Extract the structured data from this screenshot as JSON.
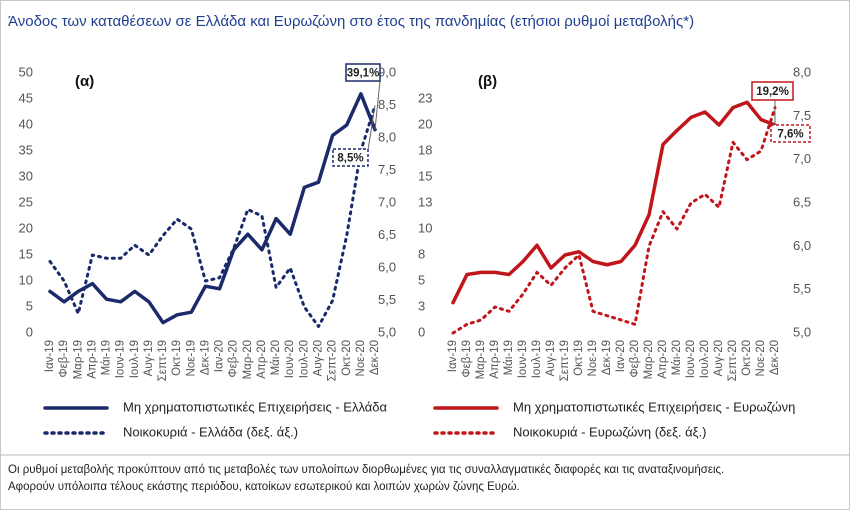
{
  "title": "Άνοδος των καταθέσεων σε Ελλάδα και Ευρωζώνη στο έτος της πανδημίας (ετήσιοι ρυθμοί μεταβολής*)",
  "footnote": [
    "Οι ρυθμοί μεταβολής προκύπτουν  από τις μεταβολές των υπολοίπων διορθωμένες για τις συναλλαγματικές διαφορές και τις αναταξινομήσεις.",
    "Αφορούν υπόλοιπα τέλους εκάστης περιόδου, κατοίκων εσωτερικού και λοιπών χωρών ζώνης Ευρώ."
  ],
  "chart_data": [
    {
      "type": "line",
      "title": "(α)",
      "categories": [
        "Ιαν-19",
        "Φεβ-19",
        "Μαρ-19",
        "Απρ-19",
        "Μάι-19",
        "Ιουν-19",
        "Ιουλ-19",
        "Αυγ-19",
        "Σεπτ-19",
        "Οκτ-19",
        "Νοε-19",
        "Δεκ-19",
        "Ιαν-20",
        "Φεβ-20",
        "Μαρ-20",
        "Απρ-20",
        "Μάι-20",
        "Ιουν-20",
        "Ιουλ-20",
        "Αυγ-20",
        "Σεπτ-20",
        "Οκτ-20",
        "Νοε-20",
        "Δεκ-20"
      ],
      "ylim": [
        0,
        50
      ],
      "yticks": [
        0,
        5,
        10,
        15,
        20,
        25,
        30,
        35,
        40,
        45,
        50
      ],
      "y2lim": [
        5,
        9
      ],
      "y2ticks": [
        {
          "value": 5,
          "label": "5,0"
        },
        {
          "value": 5.5,
          "label": "5,5"
        },
        {
          "value": 6,
          "label": "6,0"
        },
        {
          "value": 6.5,
          "label": "6,5"
        },
        {
          "value": 7,
          "label": "7,0"
        },
        {
          "value": 7.5,
          "label": "7,5"
        },
        {
          "value": 8,
          "label": "8,0"
        },
        {
          "value": 8.5,
          "label": "8,5"
        },
        {
          "value": 9,
          "label": "9,0"
        }
      ],
      "y3lim": [
        0,
        25
      ],
      "y3ticks": [
        0,
        {
          "value": 2.5,
          "label": "3"
        },
        5,
        {
          "value": 7.5,
          "label": "8"
        },
        10,
        {
          "value": 12.5,
          "label": "13"
        },
        15,
        {
          "value": 17.5,
          "label": "18"
        },
        20,
        {
          "value": 22.5,
          "label": "23"
        }
      ],
      "series": [
        {
          "name": "Μη χρηματοπιστωτικές Επιχειρήσεις - Ελλάδα",
          "color": "#1b2a6b",
          "dotted": false,
          "values": [
            8,
            6,
            8,
            9.5,
            6.5,
            6,
            8,
            6,
            2,
            3.5,
            4,
            9,
            8.5,
            16,
            19,
            16,
            22,
            19,
            28,
            29,
            38,
            40,
            46,
            39.1
          ],
          "value_labels": [
            null,
            null,
            null,
            null,
            null,
            null,
            null,
            null,
            null,
            null,
            null,
            null,
            null,
            null,
            null,
            null,
            null,
            null,
            null,
            null,
            null,
            null,
            null,
            "39,1%"
          ]
        },
        {
          "name": "Νοικοκυριά - Ελλάδα  (δεξ. άξ.)",
          "color": "#1b2a6b",
          "dotted": true,
          "axis": "y2",
          "values": [
            6.1,
            5.8,
            5.3,
            6.2,
            6.15,
            6.15,
            6.35,
            6.2,
            6.5,
            6.75,
            6.6,
            5.8,
            5.85,
            6.3,
            6.9,
            6.8,
            5.7,
            6.0,
            5.4,
            5.1,
            5.5,
            6.5,
            7.8,
            8.5
          ],
          "value_labels": [
            null,
            null,
            null,
            null,
            null,
            null,
            null,
            null,
            null,
            null,
            null,
            null,
            null,
            null,
            null,
            null,
            null,
            null,
            null,
            null,
            null,
            null,
            null,
            "8,5%"
          ]
        }
      ]
    },
    {
      "type": "line",
      "title": "(β)",
      "categories": [
        "Ιαν-19",
        "Φεβ-19",
        "Μαρ-19",
        "Απρ-19",
        "Μάι-19",
        "Ιουν-19",
        "Ιουλ-19",
        "Αυγ-19",
        "Σεπτ-19",
        "Οκτ-19",
        "Νοε-19",
        "Δεκ-19",
        "Ιαν-20",
        "Φεβ-20",
        "Μαρ-20",
        "Απρ-20",
        "Μάι-20",
        "Ιουν-20",
        "Ιουλ-20",
        "Αυγ-20",
        "Σεπτ-20",
        "Οκτ-20",
        "Νοε-20",
        "Δεκ-20"
      ],
      "ylim": [
        0,
        24
      ],
      "y2lim": [
        5,
        8
      ],
      "y2ticks": [
        {
          "value": 5,
          "label": "5,0"
        },
        {
          "value": 5.5,
          "label": "5,5"
        },
        {
          "value": 6,
          "label": "6,0"
        },
        {
          "value": 6.5,
          "label": "6,5"
        },
        {
          "value": 7,
          "label": "7,0"
        },
        {
          "value": 7.5,
          "label": "7,5"
        },
        {
          "value": 8,
          "label": "8,0"
        }
      ],
      "series": [
        {
          "name": "Μη χρηματοπιστωτικές Επιχειρήσεις - Ευρωζώνη",
          "color": "#c0161b",
          "dotted": false,
          "values": [
            2.8,
            5.4,
            5.6,
            5.6,
            5.4,
            6.6,
            8.1,
            6.0,
            7.2,
            7.5,
            6.6,
            6.3,
            6.6,
            8.1,
            10.9,
            17.4,
            18.7,
            19.9,
            20.4,
            19.2,
            20.8,
            21.3,
            19.7,
            19.2
          ],
          "value_labels": [
            null,
            null,
            null,
            null,
            null,
            null,
            null,
            null,
            null,
            null,
            null,
            null,
            null,
            null,
            null,
            null,
            null,
            null,
            null,
            null,
            null,
            null,
            null,
            "19,2%"
          ]
        },
        {
          "name": "Νοικοκυριά - Ευρωζώνη  (δεξ. άξ.)",
          "color": "#c0161b",
          "dotted": true,
          "axis": "y2",
          "values": [
            5.0,
            5.1,
            5.15,
            5.3,
            5.25,
            5.45,
            5.7,
            5.55,
            5.75,
            5.9,
            5.25,
            5.2,
            5.15,
            5.1,
            6.0,
            6.4,
            6.2,
            6.5,
            6.6,
            6.45,
            7.2,
            7.0,
            7.1,
            7.6
          ],
          "value_labels": [
            null,
            null,
            null,
            null,
            null,
            null,
            null,
            null,
            null,
            null,
            null,
            null,
            null,
            null,
            null,
            null,
            null,
            null,
            null,
            null,
            null,
            null,
            null,
            "7,6%"
          ]
        }
      ]
    }
  ]
}
